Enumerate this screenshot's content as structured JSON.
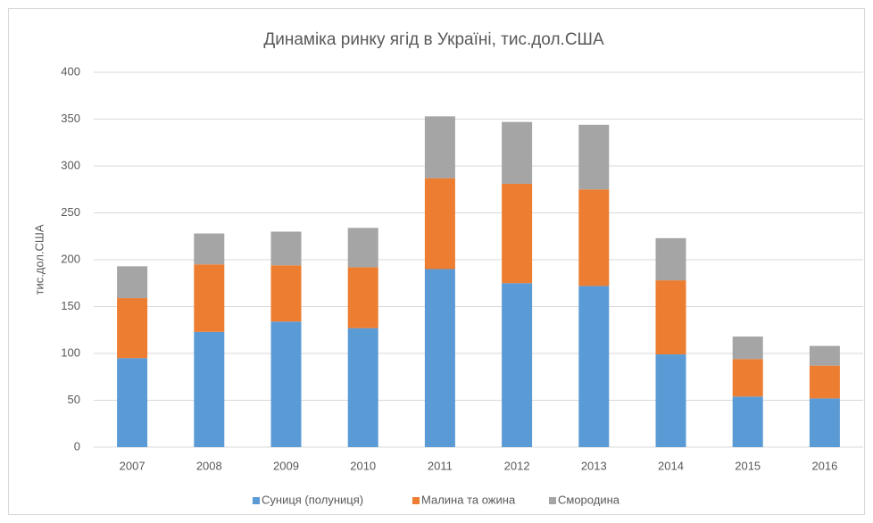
{
  "chart_data": {
    "type": "stacked_bar",
    "title": "Динаміка ринку ягід в Україні, тис.дол.США",
    "y_label": "тис.дол.США",
    "categories": [
      "2007",
      "2008",
      "2009",
      "2010",
      "2011",
      "2012",
      "2013",
      "2014",
      "2015",
      "2016"
    ],
    "series": [
      {
        "name": "Суниця (полуниця)",
        "color": "#5b9bd5",
        "values": [
          95,
          123,
          134,
          127,
          190,
          175,
          172,
          99,
          54,
          52
        ]
      },
      {
        "name": "Малина та ожина",
        "color": "#ed7d31",
        "values": [
          64,
          72,
          60,
          65,
          97,
          106,
          103,
          79,
          40,
          35
        ]
      },
      {
        "name": "Смородина",
        "color": "#a5a5a5",
        "values": [
          34,
          33,
          36,
          42,
          66,
          66,
          69,
          45,
          24,
          21
        ]
      }
    ],
    "ylim": [
      0,
      400
    ],
    "yticks": [
      0,
      50,
      100,
      150,
      200,
      250,
      300,
      350,
      400
    ],
    "grid": true,
    "legend": "bottom"
  }
}
